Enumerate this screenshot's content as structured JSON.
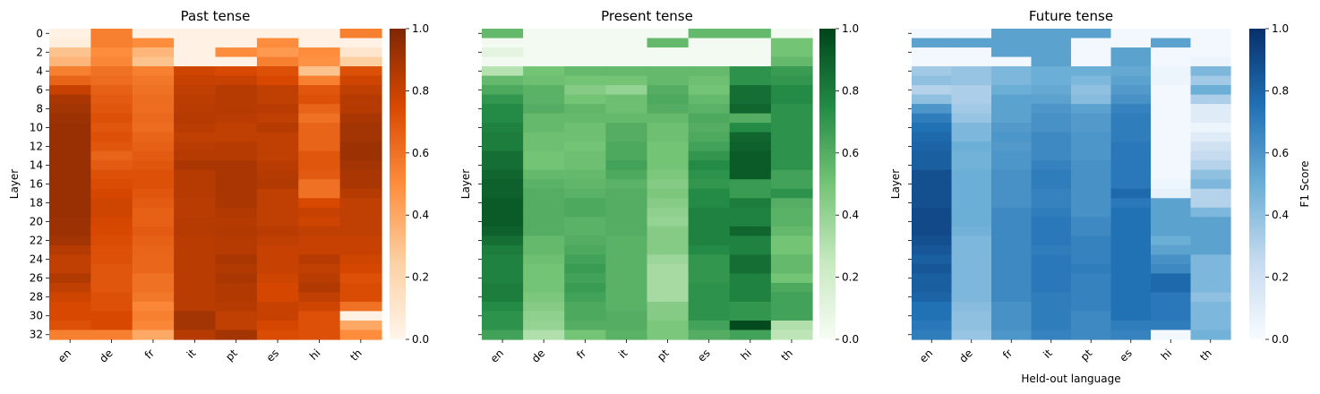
{
  "chart_data": [
    {
      "type": "heatmap",
      "title": "Past tense",
      "ylabel": "Layer",
      "xlabel": "",
      "colormap": "Oranges",
      "colors": [
        "#fff5eb",
        "#fdd0a2",
        "#fd8d3c",
        "#d94801",
        "#7f2704"
      ],
      "vrange": [
        0,
        1
      ],
      "colorbar_ticks": [
        "0.0",
        "0.2",
        "0.4",
        "0.6",
        "0.8",
        "1.0"
      ],
      "colorbar_label": "",
      "x_categories": [
        "en",
        "de",
        "fr",
        "it",
        "pt",
        "es",
        "hi",
        "th"
      ],
      "y_ticks": [
        "0",
        "2",
        "4",
        "6",
        "8",
        "10",
        "12",
        "14",
        "16",
        "18",
        "20",
        "22",
        "24",
        "26",
        "28",
        "30",
        "32"
      ],
      "values": [
        [
          0.02,
          0.55,
          0.02,
          0.02,
          0.02,
          0.02,
          0.02,
          0.55
        ],
        [
          0.05,
          0.55,
          0.5,
          0.02,
          0.02,
          0.5,
          0.02,
          0.02
        ],
        [
          0.3,
          0.5,
          0.35,
          0.02,
          0.5,
          0.45,
          0.5,
          0.1
        ],
        [
          0.35,
          0.52,
          0.3,
          0.02,
          0.02,
          0.55,
          0.48,
          0.25
        ],
        [
          0.55,
          0.6,
          0.55,
          0.78,
          0.75,
          0.72,
          0.3,
          0.72
        ],
        [
          0.65,
          0.62,
          0.58,
          0.8,
          0.8,
          0.75,
          0.55,
          0.78
        ],
        [
          0.8,
          0.66,
          0.6,
          0.82,
          0.85,
          0.82,
          0.7,
          0.82
        ],
        [
          0.88,
          0.68,
          0.62,
          0.83,
          0.85,
          0.82,
          0.72,
          0.85
        ],
        [
          0.9,
          0.7,
          0.62,
          0.84,
          0.85,
          0.84,
          0.65,
          0.85
        ],
        [
          0.92,
          0.72,
          0.63,
          0.85,
          0.84,
          0.82,
          0.6,
          0.88
        ],
        [
          0.93,
          0.7,
          0.62,
          0.84,
          0.82,
          0.85,
          0.65,
          0.9
        ],
        [
          0.93,
          0.72,
          0.65,
          0.82,
          0.82,
          0.82,
          0.65,
          0.9
        ],
        [
          0.93,
          0.7,
          0.66,
          0.84,
          0.85,
          0.82,
          0.65,
          0.92
        ],
        [
          0.93,
          0.65,
          0.68,
          0.85,
          0.85,
          0.82,
          0.7,
          0.92
        ],
        [
          0.93,
          0.68,
          0.7,
          0.88,
          0.88,
          0.84,
          0.7,
          0.9
        ],
        [
          0.93,
          0.72,
          0.72,
          0.85,
          0.88,
          0.85,
          0.68,
          0.88
        ],
        [
          0.93,
          0.74,
          0.72,
          0.85,
          0.88,
          0.86,
          0.6,
          0.88
        ],
        [
          0.93,
          0.76,
          0.7,
          0.85,
          0.88,
          0.82,
          0.6,
          0.85
        ],
        [
          0.93,
          0.78,
          0.68,
          0.84,
          0.88,
          0.82,
          0.75,
          0.82
        ],
        [
          0.93,
          0.78,
          0.66,
          0.84,
          0.86,
          0.82,
          0.8,
          0.82
        ],
        [
          0.92,
          0.76,
          0.66,
          0.85,
          0.85,
          0.82,
          0.78,
          0.82
        ],
        [
          0.92,
          0.75,
          0.68,
          0.85,
          0.86,
          0.84,
          0.82,
          0.82
        ],
        [
          0.9,
          0.74,
          0.66,
          0.84,
          0.85,
          0.82,
          0.8,
          0.8
        ],
        [
          0.85,
          0.72,
          0.65,
          0.84,
          0.85,
          0.8,
          0.8,
          0.8
        ],
        [
          0.82,
          0.72,
          0.64,
          0.84,
          0.88,
          0.8,
          0.85,
          0.78
        ],
        [
          0.82,
          0.7,
          0.64,
          0.84,
          0.86,
          0.8,
          0.82,
          0.76
        ],
        [
          0.86,
          0.7,
          0.6,
          0.84,
          0.88,
          0.78,
          0.84,
          0.72
        ],
        [
          0.82,
          0.7,
          0.6,
          0.84,
          0.86,
          0.76,
          0.86,
          0.74
        ],
        [
          0.78,
          0.72,
          0.58,
          0.84,
          0.86,
          0.76,
          0.82,
          0.74
        ],
        [
          0.75,
          0.72,
          0.52,
          0.84,
          0.85,
          0.8,
          0.78,
          0.6
        ],
        [
          0.75,
          0.75,
          0.55,
          0.9,
          0.82,
          0.8,
          0.72,
          0.02
        ],
        [
          0.72,
          0.75,
          0.52,
          0.9,
          0.82,
          0.76,
          0.72,
          0.4
        ],
        [
          0.55,
          0.55,
          0.4,
          0.85,
          0.9,
          0.74,
          0.72,
          0.5
        ]
      ]
    },
    {
      "type": "heatmap",
      "title": "Present tense",
      "ylabel": "Layer",
      "xlabel": "",
      "colormap": "Greens",
      "colors": [
        "#f7fcf5",
        "#c7e9c0",
        "#74c476",
        "#238b45",
        "#00441b"
      ],
      "vrange": [
        0,
        1
      ],
      "colorbar_ticks": [
        "0.0",
        "0.2",
        "0.4",
        "0.6",
        "0.8",
        "1.0"
      ],
      "colorbar_label": "",
      "x_categories": [
        "en",
        "de",
        "fr",
        "it",
        "pt",
        "es",
        "hi",
        "th"
      ],
      "y_ticks": [
        "0",
        "2",
        "4",
        "6",
        "8",
        "10",
        "12",
        "14",
        "16",
        "18",
        "20",
        "22",
        "24",
        "26",
        "28",
        "30",
        "32"
      ],
      "values": [
        [
          0.55,
          0.02,
          0.02,
          0.02,
          0.02,
          0.55,
          0.55,
          0.02
        ],
        [
          0.02,
          0.02,
          0.02,
          0.02,
          0.55,
          0.02,
          0.02,
          0.5
        ],
        [
          0.1,
          0.02,
          0.02,
          0.02,
          0.02,
          0.02,
          0.02,
          0.5
        ],
        [
          0.02,
          0.02,
          0.02,
          0.02,
          0.02,
          0.02,
          0.02,
          0.55
        ],
        [
          0.3,
          0.5,
          0.55,
          0.55,
          0.55,
          0.55,
          0.72,
          0.68
        ],
        [
          0.55,
          0.52,
          0.5,
          0.5,
          0.55,
          0.52,
          0.72,
          0.7
        ],
        [
          0.62,
          0.58,
          0.45,
          0.4,
          0.6,
          0.5,
          0.85,
          0.75
        ],
        [
          0.7,
          0.58,
          0.5,
          0.52,
          0.62,
          0.55,
          0.85,
          0.75
        ],
        [
          0.75,
          0.6,
          0.56,
          0.52,
          0.6,
          0.58,
          0.88,
          0.72
        ],
        [
          0.75,
          0.55,
          0.55,
          0.55,
          0.55,
          0.62,
          0.6,
          0.72
        ],
        [
          0.78,
          0.55,
          0.52,
          0.6,
          0.52,
          0.6,
          0.75,
          0.72
        ],
        [
          0.8,
          0.52,
          0.52,
          0.6,
          0.52,
          0.62,
          0.88,
          0.72
        ],
        [
          0.8,
          0.52,
          0.5,
          0.62,
          0.5,
          0.65,
          0.9,
          0.72
        ],
        [
          0.85,
          0.5,
          0.52,
          0.62,
          0.5,
          0.7,
          0.92,
          0.72
        ],
        [
          0.85,
          0.5,
          0.52,
          0.65,
          0.5,
          0.75,
          0.92,
          0.72
        ],
        [
          0.88,
          0.55,
          0.55,
          0.62,
          0.48,
          0.72,
          0.92,
          0.65
        ],
        [
          0.9,
          0.58,
          0.56,
          0.58,
          0.45,
          0.7,
          0.68,
          0.65
        ],
        [
          0.9,
          0.6,
          0.58,
          0.6,
          0.48,
          0.75,
          0.68,
          0.72
        ],
        [
          0.92,
          0.6,
          0.62,
          0.6,
          0.45,
          0.75,
          0.8,
          0.6
        ],
        [
          0.92,
          0.6,
          0.62,
          0.6,
          0.42,
          0.78,
          0.78,
          0.58
        ],
        [
          0.92,
          0.6,
          0.58,
          0.6,
          0.4,
          0.78,
          0.78,
          0.58
        ],
        [
          0.9,
          0.6,
          0.58,
          0.6,
          0.45,
          0.78,
          0.88,
          0.55
        ],
        [
          0.85,
          0.55,
          0.6,
          0.58,
          0.45,
          0.78,
          0.78,
          0.5
        ],
        [
          0.8,
          0.55,
          0.62,
          0.58,
          0.45,
          0.75,
          0.78,
          0.5
        ],
        [
          0.78,
          0.52,
          0.65,
          0.58,
          0.38,
          0.7,
          0.85,
          0.55
        ],
        [
          0.78,
          0.5,
          0.68,
          0.58,
          0.35,
          0.7,
          0.85,
          0.55
        ],
        [
          0.78,
          0.5,
          0.65,
          0.58,
          0.35,
          0.7,
          0.78,
          0.5
        ],
        [
          0.8,
          0.5,
          0.68,
          0.58,
          0.35,
          0.72,
          0.78,
          0.62
        ],
        [
          0.8,
          0.48,
          0.65,
          0.58,
          0.35,
          0.72,
          0.78,
          0.65
        ],
        [
          0.75,
          0.45,
          0.62,
          0.58,
          0.45,
          0.72,
          0.7,
          0.65
        ],
        [
          0.72,
          0.42,
          0.62,
          0.6,
          0.45,
          0.72,
          0.7,
          0.65
        ],
        [
          0.72,
          0.4,
          0.6,
          0.6,
          0.48,
          0.65,
          0.98,
          0.32
        ],
        [
          0.65,
          0.32,
          0.5,
          0.58,
          0.48,
          0.6,
          0.65,
          0.28
        ]
      ]
    },
    {
      "type": "heatmap",
      "title": "Future tense",
      "ylabel": "Layer",
      "xlabel": "Held-out language",
      "colormap": "Blues",
      "colors": [
        "#f7fbff",
        "#c6dbef",
        "#6baed6",
        "#2171b5",
        "#08306b"
      ],
      "vrange": [
        0,
        1
      ],
      "colorbar_ticks": [
        "0.0",
        "0.2",
        "0.4",
        "0.6",
        "0.8",
        "1.0"
      ],
      "colorbar_label": "F1 Score",
      "x_categories": [
        "en",
        "de",
        "fr",
        "it",
        "pt",
        "es",
        "hi",
        "th"
      ],
      "y_ticks": [
        "0",
        "2",
        "4",
        "6",
        "8",
        "10",
        "12",
        "14",
        "16",
        "18",
        "20",
        "22",
        "24",
        "26",
        "28",
        "30",
        "32"
      ],
      "values": [
        [
          0.02,
          0.02,
          0.55,
          0.55,
          0.55,
          0.02,
          0.02,
          0.02
        ],
        [
          0.55,
          0.55,
          0.55,
          0.55,
          0.02,
          0.02,
          0.55,
          0.02
        ],
        [
          0.02,
          0.02,
          0.55,
          0.55,
          0.02,
          0.55,
          0.02,
          0.02
        ],
        [
          0.02,
          0.02,
          0.02,
          0.55,
          0.02,
          0.55,
          0.02,
          0.05
        ],
        [
          0.35,
          0.38,
          0.45,
          0.5,
          0.5,
          0.52,
          0.05,
          0.45
        ],
        [
          0.4,
          0.38,
          0.45,
          0.5,
          0.45,
          0.55,
          0.05,
          0.35
        ],
        [
          0.3,
          0.32,
          0.5,
          0.52,
          0.4,
          0.58,
          0.02,
          0.5
        ],
        [
          0.4,
          0.32,
          0.55,
          0.55,
          0.42,
          0.62,
          0.02,
          0.32
        ],
        [
          0.6,
          0.35,
          0.55,
          0.6,
          0.55,
          0.68,
          0.02,
          0.12
        ],
        [
          0.7,
          0.38,
          0.55,
          0.62,
          0.58,
          0.7,
          0.02,
          0.12
        ],
        [
          0.75,
          0.45,
          0.58,
          0.62,
          0.58,
          0.7,
          0.02,
          0.05
        ],
        [
          0.78,
          0.45,
          0.6,
          0.65,
          0.6,
          0.7,
          0.02,
          0.12
        ],
        [
          0.8,
          0.5,
          0.58,
          0.65,
          0.6,
          0.72,
          0.02,
          0.2
        ],
        [
          0.82,
          0.48,
          0.6,
          0.65,
          0.6,
          0.72,
          0.02,
          0.25
        ],
        [
          0.82,
          0.48,
          0.6,
          0.68,
          0.62,
          0.72,
          0.02,
          0.3
        ],
        [
          0.88,
          0.5,
          0.62,
          0.7,
          0.62,
          0.72,
          0.02,
          0.4
        ],
        [
          0.88,
          0.5,
          0.62,
          0.7,
          0.62,
          0.72,
          0.05,
          0.45
        ],
        [
          0.88,
          0.5,
          0.62,
          0.68,
          0.62,
          0.78,
          0.08,
          0.3
        ],
        [
          0.88,
          0.5,
          0.62,
          0.68,
          0.62,
          0.72,
          0.55,
          0.3
        ],
        [
          0.9,
          0.5,
          0.65,
          0.7,
          0.62,
          0.75,
          0.55,
          0.45
        ],
        [
          0.9,
          0.5,
          0.65,
          0.72,
          0.65,
          0.75,
          0.55,
          0.55
        ],
        [
          0.9,
          0.48,
          0.65,
          0.72,
          0.65,
          0.75,
          0.55,
          0.55
        ],
        [
          0.88,
          0.45,
          0.65,
          0.72,
          0.68,
          0.75,
          0.5,
          0.55
        ],
        [
          0.85,
          0.45,
          0.65,
          0.7,
          0.68,
          0.75,
          0.55,
          0.55
        ],
        [
          0.82,
          0.45,
          0.65,
          0.72,
          0.68,
          0.75,
          0.62,
          0.45
        ],
        [
          0.85,
          0.45,
          0.65,
          0.72,
          0.7,
          0.75,
          0.65,
          0.45
        ],
        [
          0.82,
          0.45,
          0.65,
          0.72,
          0.68,
          0.75,
          0.78,
          0.45
        ],
        [
          0.82,
          0.45,
          0.65,
          0.72,
          0.68,
          0.75,
          0.78,
          0.45
        ],
        [
          0.8,
          0.45,
          0.65,
          0.7,
          0.68,
          0.75,
          0.72,
          0.4
        ],
        [
          0.75,
          0.42,
          0.62,
          0.7,
          0.68,
          0.75,
          0.72,
          0.45
        ],
        [
          0.75,
          0.4,
          0.62,
          0.7,
          0.65,
          0.75,
          0.72,
          0.45
        ],
        [
          0.72,
          0.4,
          0.62,
          0.7,
          0.65,
          0.7,
          0.7,
          0.45
        ],
        [
          0.7,
          0.38,
          0.6,
          0.68,
          0.65,
          0.68,
          0.02,
          0.48
        ]
      ]
    }
  ]
}
